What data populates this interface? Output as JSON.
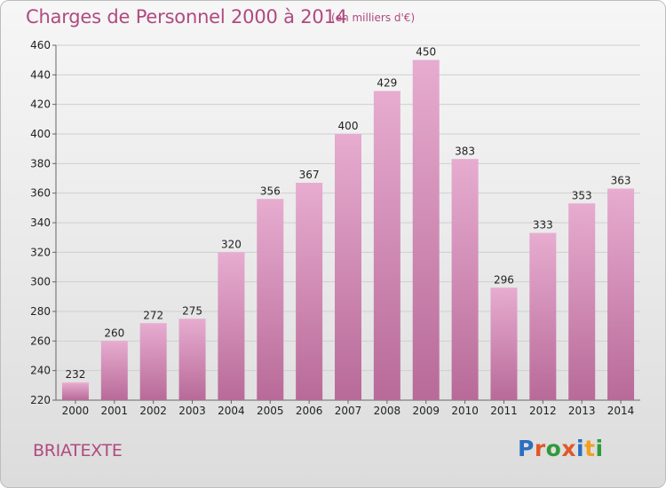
{
  "title": "Charges de Personnel 2000 à 2014",
  "subtitle": "(en milliers d'€)",
  "commune": "BRIATEXTE",
  "logo": "Proxiti",
  "colors": {
    "bar": "#d98ab8",
    "bar_light": "#e7acd0",
    "bar_dark": "#b86a98",
    "accent": "#b04a80",
    "grid": "#cfcfcf"
  },
  "chart_data": {
    "type": "bar",
    "categories": [
      "2000",
      "2001",
      "2002",
      "2003",
      "2004",
      "2005",
      "2006",
      "2007",
      "2008",
      "2009",
      "2010",
      "2011",
      "2012",
      "2013",
      "2014"
    ],
    "values": [
      232,
      260,
      272,
      275,
      320,
      356,
      367,
      400,
      429,
      450,
      383,
      296,
      333,
      353,
      363
    ],
    "ylim": [
      220,
      460
    ],
    "yticks": [
      220,
      240,
      260,
      280,
      300,
      320,
      340,
      360,
      380,
      400,
      420,
      440,
      460
    ],
    "grid": true,
    "xlabel": "",
    "ylabel": ""
  }
}
